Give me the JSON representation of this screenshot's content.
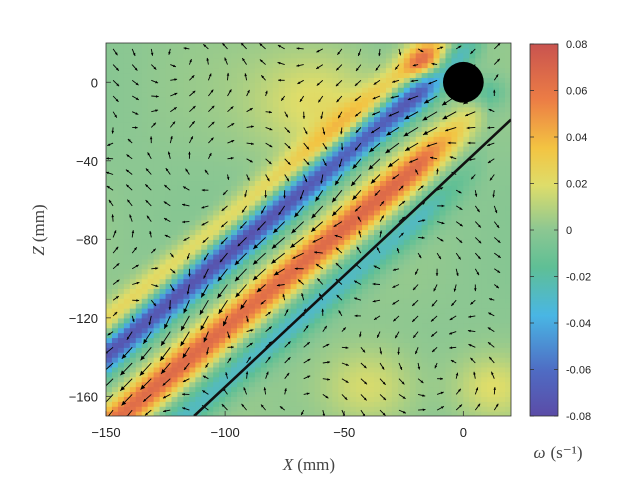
{
  "chart_data": {
    "type": "heatmap",
    "title": "",
    "xlabel": {
      "symbol": "X",
      "unit": "(mm)"
    },
    "ylabel": {
      "symbol": "Z",
      "unit": "(mm)"
    },
    "xlim": [
      -150,
      20
    ],
    "ylim": [
      -170,
      20
    ],
    "x_ticks": [
      -150,
      -100,
      -50,
      0
    ],
    "x_tick_labels": [
      "−150",
      "−100",
      "−50",
      "0"
    ],
    "y_ticks": [
      0,
      -40,
      -80,
      -120,
      -160
    ],
    "y_tick_labels": [
      "0",
      "−40",
      "−80",
      "−120",
      "−160"
    ],
    "colorbar": {
      "label": {
        "symbol": "ω",
        "unit": "(s⁻¹)"
      },
      "range": [
        -0.08,
        0.08
      ],
      "ticks": [
        0.08,
        0.06,
        0.04,
        0.02,
        0,
        -0.02,
        -0.04,
        -0.06,
        -0.08
      ],
      "tick_labels": [
        "0.08",
        "0.06",
        "0.04",
        "0.02",
        "0",
        "-0.02",
        "-0.04",
        "-0.06",
        "-0.08"
      ],
      "colormap": "jet (muted)"
    },
    "features": {
      "sphere": {
        "x": 0,
        "z": 0,
        "radius_mm": 4.5
      },
      "line": {
        "x1": -113,
        "z1": -170,
        "x2": 20,
        "z2": -19
      },
      "wake": {
        "slope": 1.02,
        "negative_band_offset_mm": 10,
        "positive_band_offset_mm": -16,
        "center_offset_mm": -3,
        "positive_peak": 0.065,
        "negative_peak": -0.075
      },
      "vector_grid": {
        "spacing_mm": 8
      }
    },
    "colors": {
      "background_mid": "#5cb98c",
      "line": "#111111",
      "arrow": "#000000",
      "sphere": "#000000"
    }
  }
}
